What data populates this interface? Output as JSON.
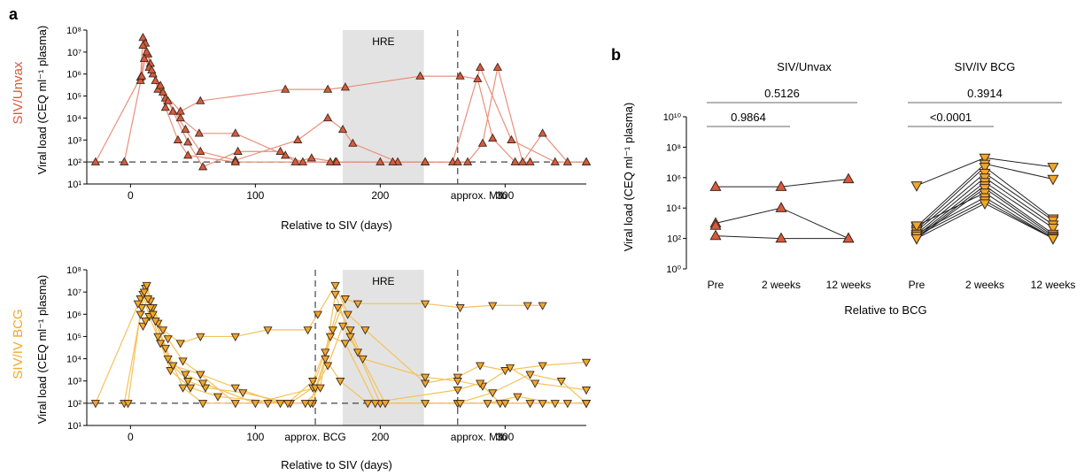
{
  "colors": {
    "unvax_fill": "#d95a3c",
    "unvax_line": "#e8907c",
    "bcg_fill": "#f2a72a",
    "bcg_line": "#f4c25a",
    "shade": "#e3e3e3",
    "axis": "#000000",
    "sig": "#888888"
  },
  "panel_a_label": "a",
  "panel_b_label": "b",
  "panel_a": {
    "xlabel": "Relative to SIV (days)",
    "ylabel": "Viral load (CEQ ml⁻¹ plasma)",
    "y_ticks": [
      "10¹",
      "10²",
      "10³",
      "10⁴",
      "10⁵",
      "10⁶",
      "10⁷",
      "10⁸"
    ]
  },
  "chart_data": [
    {
      "type": "line",
      "panel": "a-top",
      "group_label": "SIV/Unvax",
      "x_ticks": [
        "0",
        "100",
        "200",
        "300"
      ],
      "xlim": [
        -35,
        365
      ],
      "ylim_log10": [
        1,
        8
      ],
      "detection_limit": 100,
      "shaded_label": "HRE",
      "shaded_range": [
        170,
        235
      ],
      "vlines": [
        {
          "x": 262,
          "label": "approx. Mtb"
        }
      ],
      "series": [
        {
          "points": [
            [
              -28,
              100
            ],
            [
              8,
              700000
            ],
            [
              10,
              45000000
            ],
            [
              14,
              8000000
            ],
            [
              20,
              500000
            ],
            [
              28,
              80000
            ],
            [
              40,
              10000
            ],
            [
              55,
              2000
            ],
            [
              84,
              2000
            ],
            [
              124,
              200
            ],
            [
              138,
              100
            ],
            [
              164,
              100
            ],
            [
              200,
              100
            ],
            [
              236,
              100
            ]
          ]
        },
        {
          "points": [
            [
              8,
              500000
            ],
            [
              12,
              25000000
            ],
            [
              16,
              3000000
            ],
            [
              22,
              200000
            ],
            [
              30,
              60000
            ],
            [
              44,
              3000
            ],
            [
              56,
              300
            ],
            [
              84,
              120
            ],
            [
              134,
              1000
            ],
            [
              158,
              10000
            ],
            [
              170,
              3000
            ],
            [
              178,
              700
            ],
            [
              214,
              100
            ],
            [
              236,
              100
            ]
          ]
        },
        {
          "points": [
            [
              -5,
              100
            ],
            [
              9,
              800000
            ],
            [
              13,
              10000000
            ],
            [
              18,
              1000000
            ],
            [
              26,
              150000
            ],
            [
              40,
              20000
            ],
            [
              56,
              60000
            ],
            [
              124,
              200000
            ],
            [
              158,
              200000
            ],
            [
              172,
              250000
            ],
            [
              232,
              800000
            ],
            [
              264,
              800000
            ],
            [
              278,
              600000
            ],
            [
              290,
              1200
            ],
            [
              308,
              100
            ],
            [
              320,
              100
            ]
          ]
        },
        {
          "points": [
            [
              10,
              20000000
            ],
            [
              15,
              2000000
            ],
            [
              24,
              300000
            ],
            [
              34,
              20000
            ],
            [
              46,
              800
            ],
            [
              58,
              60
            ],
            [
              86,
              300
            ],
            [
              120,
              300
            ],
            [
              132,
              100
            ],
            [
              145,
              150
            ],
            [
              165,
              100
            ],
            [
              210,
              100
            ],
            [
              258,
              100
            ],
            [
              280,
              2000000
            ],
            [
              305,
              1000
            ],
            [
              340,
              100
            ],
            [
              365,
              100
            ]
          ]
        },
        {
          "points": [
            [
              11,
              5000000
            ],
            [
              17,
              1500000
            ],
            [
              28,
              30000
            ],
            [
              38,
              1000
            ],
            [
              46,
              200
            ],
            [
              84,
              100
            ],
            [
              160,
              100
            ],
            [
              262,
              100
            ],
            [
              270,
              100
            ],
            [
              282,
              700
            ],
            [
              294,
              2000000
            ],
            [
              314,
              100
            ],
            [
              330,
              2000
            ],
            [
              350,
              100
            ],
            [
              365,
              100
            ]
          ]
        }
      ]
    },
    {
      "type": "line",
      "panel": "a-bottom",
      "group_label": "SIV/IV BCG",
      "x_ticks": [
        "0",
        "100",
        "200",
        "300"
      ],
      "xlim": [
        -35,
        365
      ],
      "ylim_log10": [
        1,
        8
      ],
      "detection_limit": 100,
      "shaded_label": "HRE",
      "shaded_range": [
        170,
        235
      ],
      "vlines": [
        {
          "x": 148,
          "label": "approx. BCG"
        },
        {
          "x": 262,
          "label": "approx. Mtb"
        }
      ],
      "series": [
        {
          "points": [
            [
              -28,
              100
            ],
            [
              8,
              5000000
            ],
            [
              12,
              15000000
            ],
            [
              16,
              4000000
            ],
            [
              22,
              400000
            ],
            [
              30,
              80000
            ],
            [
              42,
              8000
            ],
            [
              56,
              2000
            ],
            [
              84,
              500
            ],
            [
              120,
              100
            ],
            [
              146,
              100
            ],
            [
              162,
              200000
            ],
            [
              172,
              5000000
            ],
            [
              182,
              3000000
            ],
            [
              236,
              3000000
            ],
            [
              264,
              2000000
            ],
            [
              290,
              2500000
            ],
            [
              318,
              2500000
            ],
            [
              330,
              2500000
            ]
          ]
        },
        {
          "points": [
            [
              -5,
              100
            ],
            [
              9,
              2000000
            ],
            [
              13,
              20000000
            ],
            [
              18,
              2000000
            ],
            [
              26,
              200000
            ],
            [
              40,
              50000
            ],
            [
              56,
              100000
            ],
            [
              84,
              100000
            ],
            [
              110,
              200000
            ],
            [
              142,
              200000
            ],
            [
              150,
              1000000
            ],
            [
              164,
              20000000
            ],
            [
              174,
              1000000
            ],
            [
              188,
              200000
            ],
            [
              236,
              800
            ],
            [
              262,
              1500
            ],
            [
              280,
              5000
            ],
            [
              300,
              3000
            ],
            [
              330,
              5000
            ],
            [
              365,
              7000
            ]
          ]
        },
        {
          "points": [
            [
              -2,
              100
            ],
            [
              10,
              8000000
            ],
            [
              15,
              800000
            ],
            [
              24,
              50000
            ],
            [
              34,
              5000
            ],
            [
              46,
              1000
            ],
            [
              60,
              500
            ],
            [
              90,
              300
            ],
            [
              128,
              100
            ],
            [
              146,
              500
            ],
            [
              156,
              20000
            ],
            [
              166,
              2000000
            ],
            [
              176,
              200000
            ],
            [
              186,
              10000
            ],
            [
              236,
              1500
            ],
            [
              262,
              1000
            ],
            [
              282,
              600
            ],
            [
              304,
              4000
            ],
            [
              324,
              800
            ],
            [
              365,
              400
            ]
          ]
        },
        {
          "points": [
            [
              6,
              3000000
            ],
            [
              11,
              10000000
            ],
            [
              20,
              500000
            ],
            [
              30,
              10000
            ],
            [
              44,
              2000
            ],
            [
              58,
              800
            ],
            [
              100,
              100
            ],
            [
              148,
              500
            ],
            [
              158,
              5000
            ],
            [
              170,
              300000
            ],
            [
              182,
              20000
            ],
            [
              200,
              100
            ],
            [
              236,
              100
            ],
            [
              262,
              100
            ],
            [
              286,
              100
            ],
            [
              310,
              200
            ],
            [
              340,
              100
            ],
            [
              365,
              100
            ]
          ]
        },
        {
          "points": [
            [
              8,
              1000000
            ],
            [
              14,
              5000000
            ],
            [
              22,
              100000
            ],
            [
              32,
              3000
            ],
            [
              48,
              500
            ],
            [
              70,
              200
            ],
            [
              126,
              100
            ],
            [
              146,
              1000
            ],
            [
              160,
              100000
            ],
            [
              172,
              50000
            ],
            [
              196,
              100
            ],
            [
              262,
              100
            ],
            [
              290,
              300
            ],
            [
              320,
              2000
            ],
            [
              345,
              1000
            ],
            [
              365,
              100
            ]
          ]
        },
        {
          "points": [
            [
              10,
              300000
            ],
            [
              16,
              2000000
            ],
            [
              28,
              30000
            ],
            [
              42,
              500
            ],
            [
              58,
              100
            ],
            [
              110,
              100
            ],
            [
              144,
              100
            ],
            [
              156,
              10000
            ],
            [
              168,
              1000
            ],
            [
              190,
              100
            ],
            [
              262,
              400
            ],
            [
              280,
              800
            ],
            [
              296,
              100
            ],
            [
              330,
              100
            ],
            [
              350,
              100
            ]
          ]
        },
        {
          "points": [
            [
              12,
              500000
            ],
            [
              18,
              1000000
            ],
            [
              34,
              5000
            ],
            [
              56,
              2000
            ],
            [
              84,
              100
            ],
            [
              140,
              100
            ],
            [
              152,
              500
            ],
            [
              164,
              8000000
            ],
            [
              176,
              100000
            ],
            [
              204,
              100
            ],
            [
              264,
              100
            ],
            [
              300,
              100
            ],
            [
              320,
              100
            ],
            [
              365,
              100
            ]
          ]
        }
      ]
    },
    {
      "type": "line",
      "panel": "b",
      "categories": [
        "Pre",
        "2 weeks",
        "12 weeks",
        "Pre",
        "2 weeks",
        "12 weeks"
      ],
      "xlabel": "Relative to BCG",
      "ylabel": "Viral load (CEQ ml⁻¹ plasma)",
      "y_ticks": [
        "10⁰",
        "10²",
        "10⁴",
        "10⁶",
        "10⁸",
        "10¹⁰"
      ],
      "ylim_log10": [
        0,
        10
      ],
      "groups": [
        {
          "name": "SIV/Unvax",
          "series": [
            {
              "values": [
                250000,
                250000,
                800000
              ]
            },
            {
              "values": [
                1000,
                10000,
                100
              ]
            },
            {
              "values": [
                150,
                100,
                100
              ]
            },
            {
              "values": [
                700,
                null,
                null
              ]
            }
          ]
        },
        {
          "name": "SIV/IV BCG",
          "series": [
            {
              "values": [
                300000,
                20000000,
                5000000
              ]
            },
            {
              "values": [
                600,
                8000000,
                800000
              ]
            },
            {
              "values": [
                400,
                5000000,
                2000
              ]
            },
            {
              "values": [
                300,
                2000000,
                1500
              ]
            },
            {
              "values": [
                200,
                1000000,
                800
              ]
            },
            {
              "values": [
                150,
                500000,
                500
              ]
            },
            {
              "values": [
                120,
                300000,
                200
              ]
            },
            {
              "values": [
                100,
                200000,
                150
              ]
            },
            {
              "values": [
                700,
                100000,
                120
              ]
            },
            {
              "values": [
                200,
                50000,
                100
              ]
            },
            {
              "values": [
                150,
                30000,
                100
              ]
            },
            {
              "values": [
                100,
                20000,
                100
              ]
            }
          ]
        }
      ],
      "comparisons": [
        {
          "group": 0,
          "from": 0,
          "to": 2,
          "label": "0.5126"
        },
        {
          "group": 0,
          "from": 0,
          "to": 1,
          "label": "0.9864"
        },
        {
          "group": 1,
          "from": 0,
          "to": 2,
          "label": "0.3914"
        },
        {
          "group": 1,
          "from": 0,
          "to": 1,
          "label": "<0.0001"
        }
      ]
    }
  ]
}
